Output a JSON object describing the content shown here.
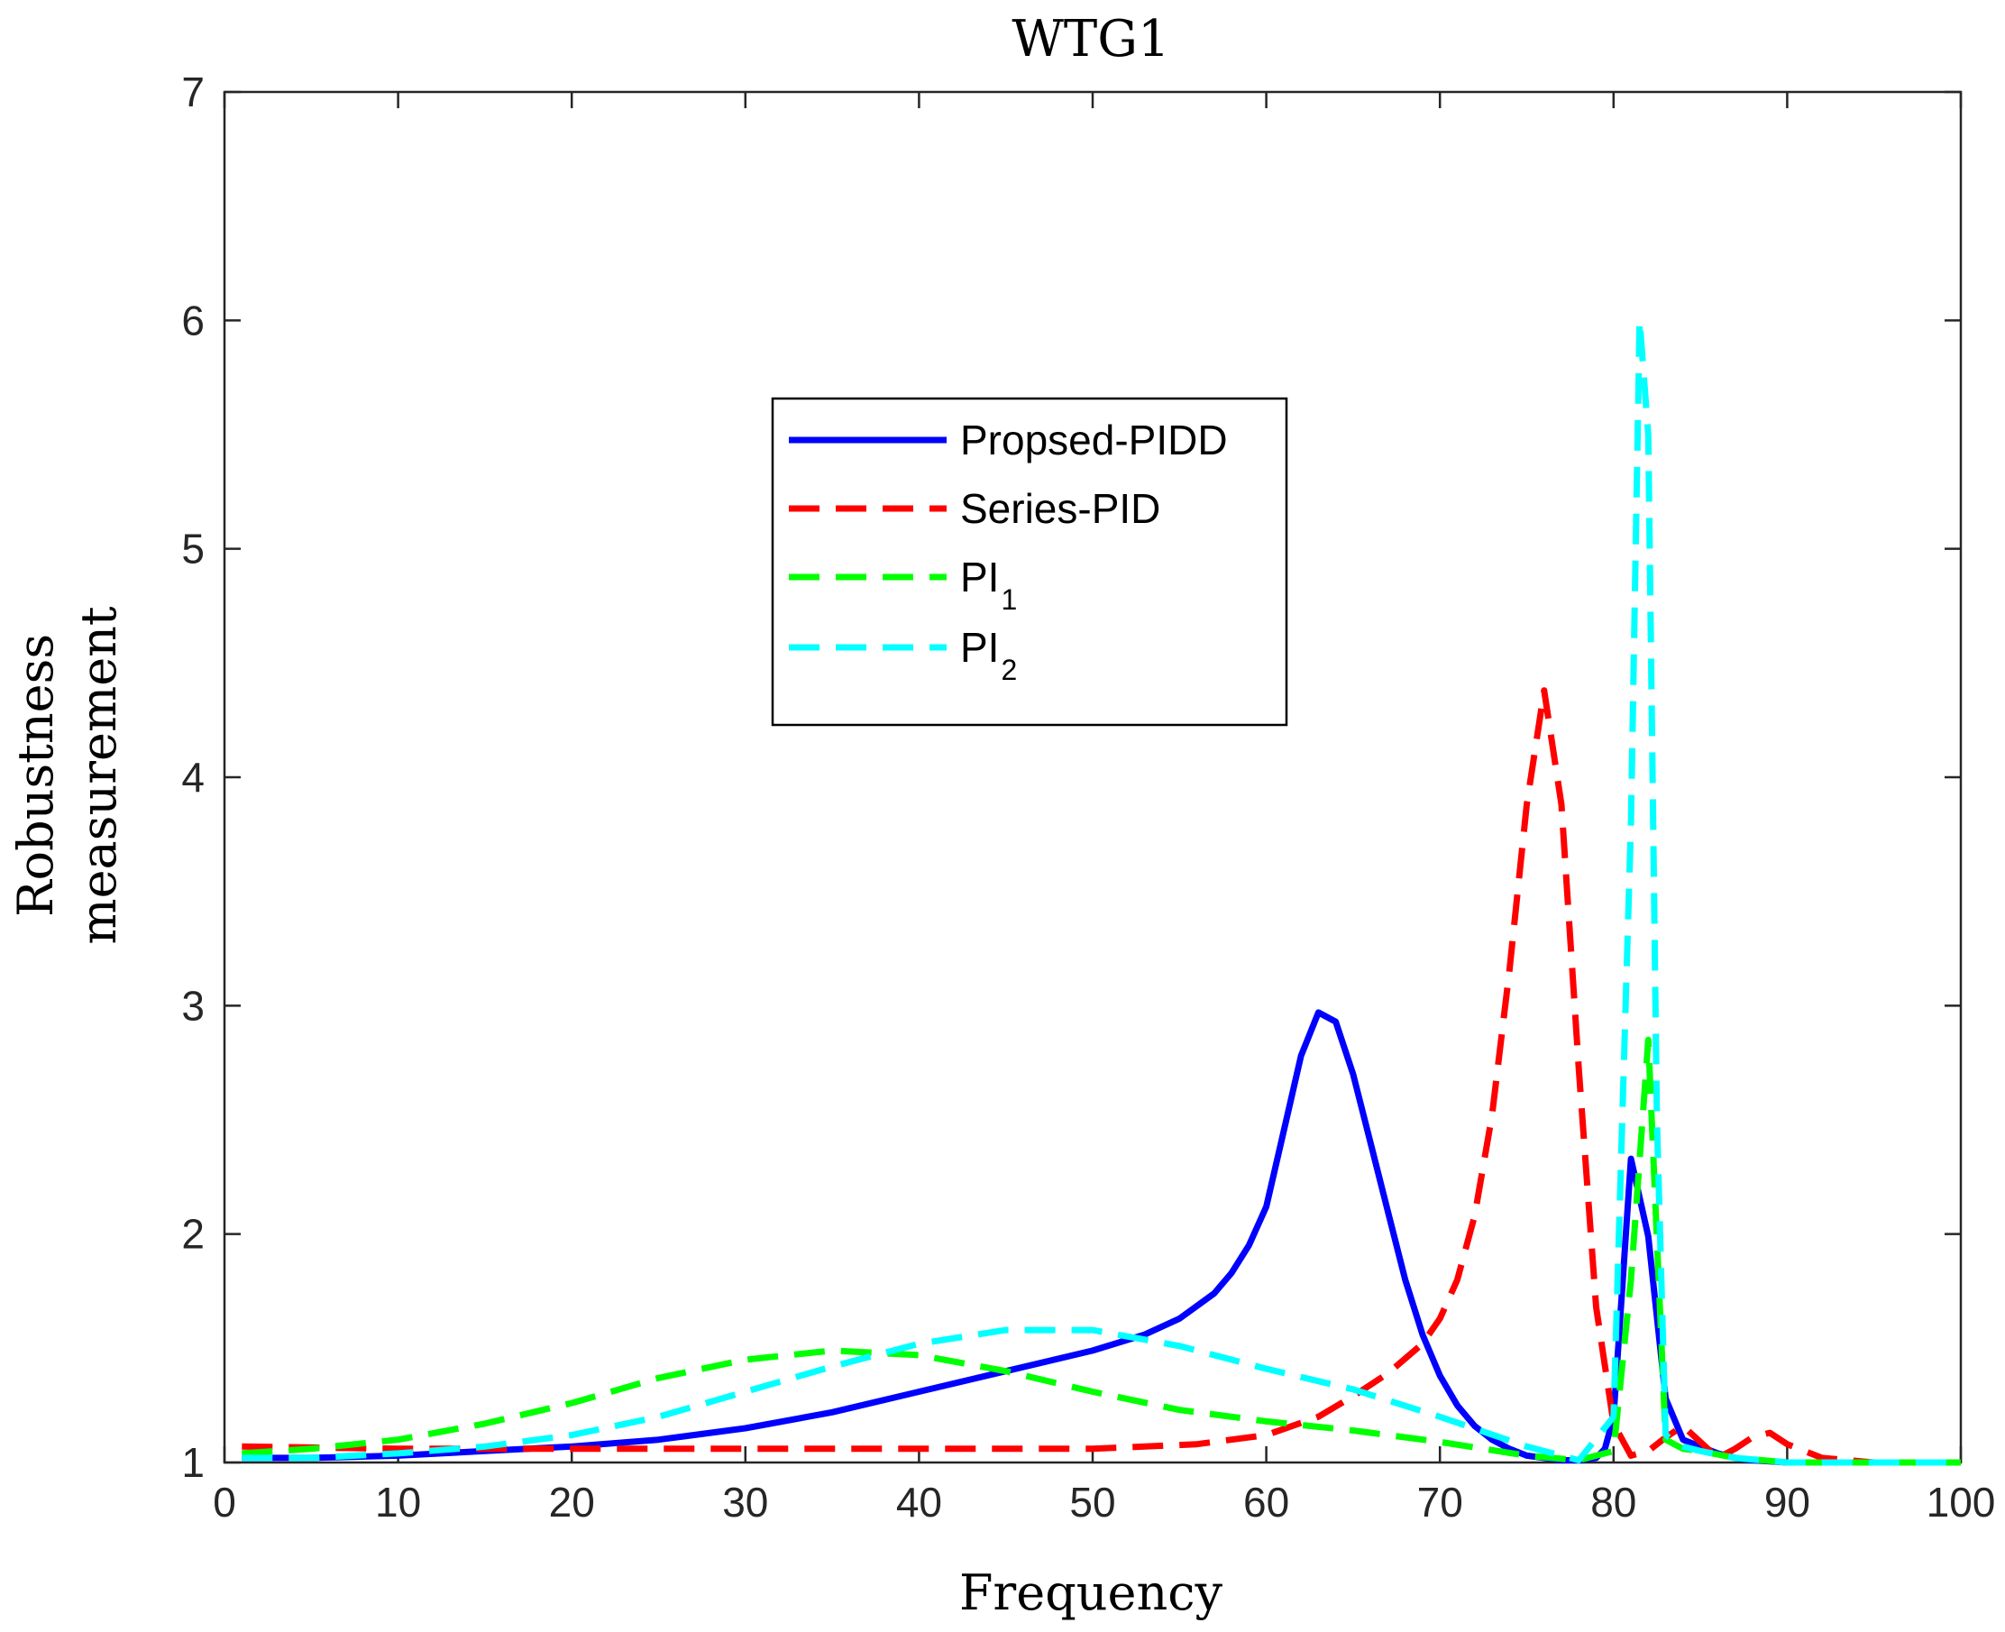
{
  "chart_data": {
    "type": "line",
    "title": "WTG1",
    "xlabel": "Frequency",
    "ylabel_lines": [
      "Robustness",
      "measurement"
    ],
    "xlim": [
      0,
      100
    ],
    "ylim": [
      1,
      7
    ],
    "xticks": [
      0,
      10,
      20,
      30,
      40,
      50,
      60,
      70,
      80,
      90,
      100
    ],
    "yticks": [
      1,
      2,
      3,
      4,
      5,
      6,
      7
    ],
    "grid": false,
    "legend_position": "upper-center",
    "series": [
      {
        "name": "Propsed-PIDD",
        "legend_main": "Propsed-PIDD",
        "legend_sub": "",
        "color": "#0000ff",
        "style": "solid",
        "x": [
          1,
          5,
          10,
          15,
          20,
          25,
          30,
          35,
          40,
          45,
          50,
          53,
          55,
          57,
          58,
          59,
          60,
          61,
          62,
          63,
          64,
          65,
          66,
          67,
          68,
          69,
          70,
          71,
          72,
          73,
          74,
          75,
          76,
          77,
          78,
          79,
          79.5,
          80,
          81,
          82,
          83,
          84,
          85,
          86,
          87,
          88,
          90,
          95,
          100
        ],
        "y": [
          1.02,
          1.02,
          1.03,
          1.05,
          1.07,
          1.1,
          1.15,
          1.22,
          1.31,
          1.4,
          1.49,
          1.56,
          1.63,
          1.74,
          1.83,
          1.95,
          2.12,
          2.45,
          2.78,
          2.97,
          2.93,
          2.7,
          2.4,
          2.1,
          1.8,
          1.56,
          1.38,
          1.25,
          1.16,
          1.1,
          1.06,
          1.03,
          1.02,
          1.01,
          1.01,
          1.02,
          1.06,
          1.2,
          2.33,
          1.99,
          1.28,
          1.1,
          1.07,
          1.04,
          1.02,
          1.01,
          1.0,
          1.0,
          1.0
        ]
      },
      {
        "name": "Series-PID",
        "legend_main": "Series-PID",
        "legend_sub": "",
        "color": "#ff0000",
        "style": "dashed",
        "x": [
          1,
          10,
          20,
          30,
          40,
          50,
          53,
          56,
          60,
          63,
          65,
          67,
          69,
          70,
          71,
          72,
          73,
          74,
          75,
          76,
          77,
          78,
          79,
          80,
          81,
          82,
          83,
          84,
          85,
          86,
          87,
          88,
          89,
          90,
          92,
          95,
          100
        ],
        "y": [
          1.07,
          1.06,
          1.06,
          1.06,
          1.06,
          1.06,
          1.07,
          1.08,
          1.12,
          1.2,
          1.29,
          1.39,
          1.52,
          1.63,
          1.8,
          2.08,
          2.52,
          3.15,
          3.88,
          4.38,
          3.88,
          2.72,
          1.68,
          1.17,
          1.03,
          1.05,
          1.11,
          1.16,
          1.09,
          1.02,
          1.06,
          1.11,
          1.13,
          1.08,
          1.02,
          1.0,
          1.0
        ]
      },
      {
        "name": "PI1",
        "legend_main": "PI",
        "legend_sub": "1",
        "color": "#00ff00",
        "style": "dashed",
        "x": [
          1,
          5,
          10,
          15,
          20,
          25,
          30,
          35,
          40,
          45,
          50,
          55,
          60,
          65,
          70,
          75,
          78,
          80,
          81,
          82,
          83,
          84,
          85,
          87,
          90,
          95,
          100
        ],
        "y": [
          1.04,
          1.06,
          1.1,
          1.17,
          1.26,
          1.37,
          1.45,
          1.49,
          1.47,
          1.4,
          1.31,
          1.23,
          1.18,
          1.14,
          1.09,
          1.03,
          1.01,
          1.05,
          1.8,
          2.85,
          1.1,
          1.06,
          1.05,
          1.02,
          1.0,
          1.0,
          1.0
        ]
      },
      {
        "name": "PI2",
        "legend_main": "PI",
        "legend_sub": "2",
        "color": "#00ffff",
        "style": "dashed",
        "x": [
          1,
          5,
          10,
          15,
          20,
          25,
          30,
          35,
          40,
          45,
          50,
          55,
          60,
          65,
          70,
          75,
          78,
          80,
          81,
          81.5,
          82,
          82.5,
          83,
          84,
          85,
          87,
          90,
          95,
          100
        ],
        "y": [
          1.02,
          1.02,
          1.04,
          1.07,
          1.12,
          1.2,
          1.31,
          1.42,
          1.52,
          1.58,
          1.58,
          1.51,
          1.41,
          1.32,
          1.2,
          1.07,
          1.01,
          1.2,
          3.8,
          6.0,
          5.5,
          2.5,
          1.12,
          1.07,
          1.05,
          1.02,
          1.0,
          1.0,
          1.0
        ]
      }
    ]
  }
}
